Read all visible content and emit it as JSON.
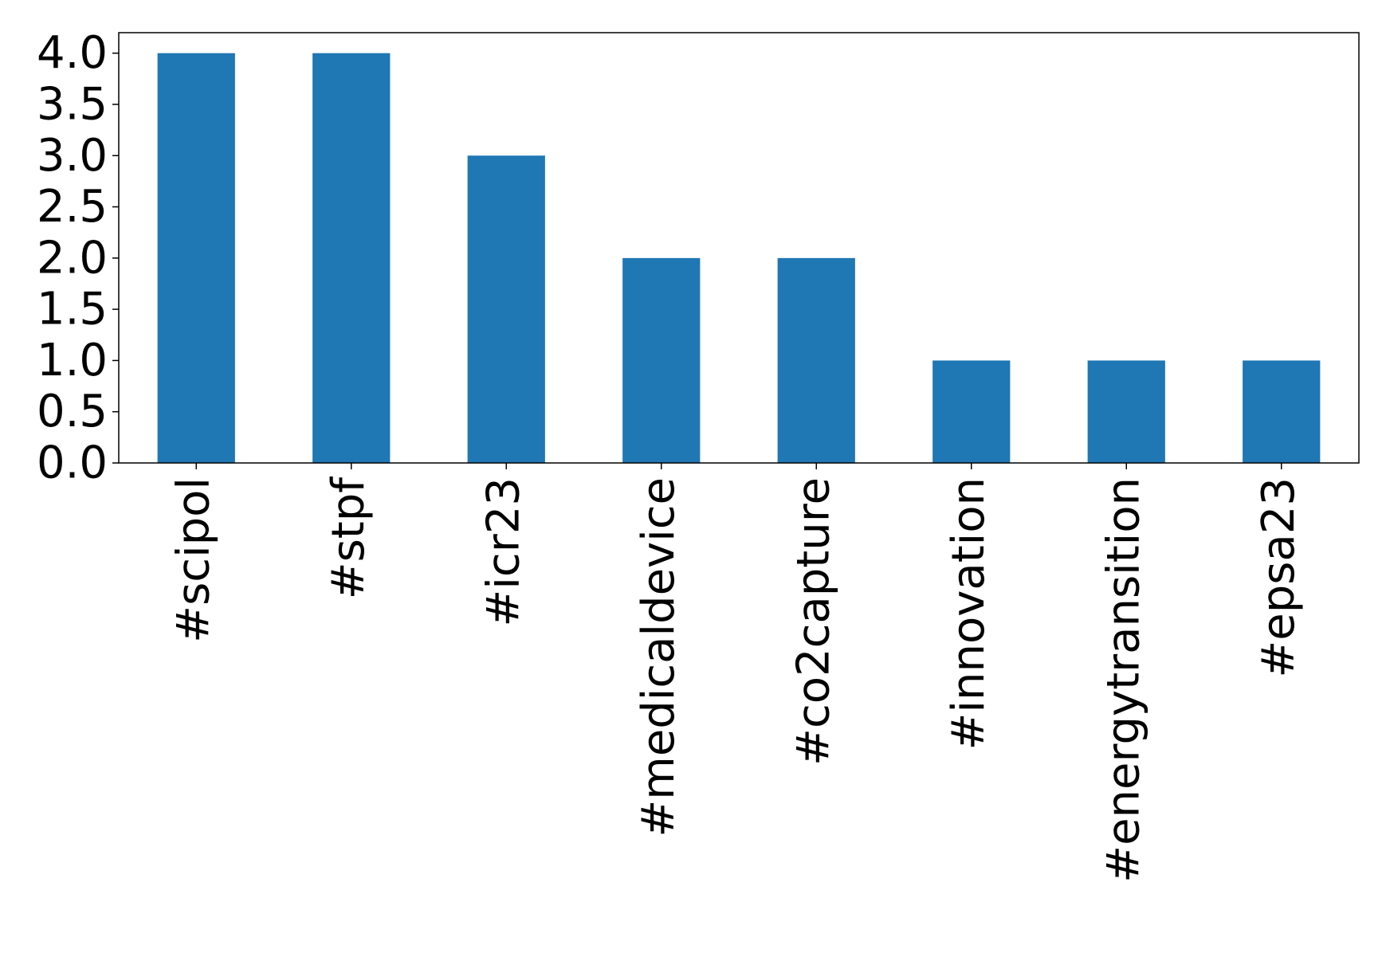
{
  "chart_data": {
    "type": "bar",
    "categories": [
      "#scipol",
      "#stpf",
      "#icr23",
      "#medicaldevice",
      "#co2capture",
      "#innovation",
      "#energytransition",
      "#epsa23"
    ],
    "values": [
      4,
      4,
      3,
      2,
      2,
      1,
      1,
      1
    ],
    "yticks": [
      "0.0",
      "0.5",
      "1.0",
      "1.5",
      "2.0",
      "2.5",
      "3.0",
      "3.5",
      "4.0"
    ],
    "ylim": [
      0,
      4.2
    ],
    "title": "",
    "xlabel": "",
    "ylabel": "",
    "grid": false,
    "legend": "none",
    "bar_color": "#1f77b4"
  }
}
